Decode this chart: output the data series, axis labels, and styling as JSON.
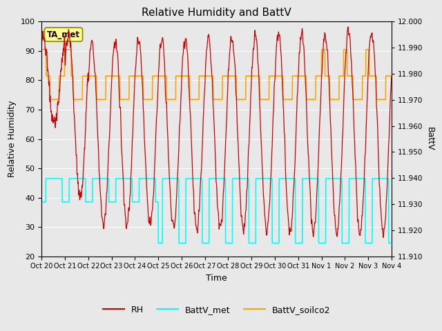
{
  "title": "Relative Humidity and BattV",
  "xlabel": "Time",
  "ylabel_left": "Relative Humidity",
  "ylabel_right": "BattV",
  "annotation": "TA_met",
  "annotation_facecolor": "#FFFF99",
  "annotation_edgecolor": "#888800",
  "fig_facecolor": "#E8E8E8",
  "plot_facecolor": "#E8E8E8",
  "rh_color": "#CC0000",
  "battv_met_color": "#00FFFF",
  "battv_soilco2_color": "#FFA500",
  "ylim_left": [
    20,
    100
  ],
  "ylim_right": [
    11.91,
    12.0
  ],
  "xtick_labels": [
    "Oct 20",
    "Oct 21",
    "Oct 22",
    "Oct 23",
    "Oct 24",
    "Oct 25",
    "Oct 26",
    "Oct 27",
    "Oct 28",
    "Oct 29",
    "Oct 30",
    "Oct 31",
    "Nov 1",
    "Nov 2",
    "Nov 3",
    "Nov 4"
  ],
  "ytick_right": [
    11.91,
    11.92,
    11.93,
    11.94,
    11.95,
    11.96,
    11.97,
    11.98,
    11.99,
    12.0
  ],
  "ytick_left": [
    20,
    30,
    40,
    50,
    60,
    70,
    80,
    90,
    100
  ],
  "grid_color": "#FFFFFF",
  "legend_labels": [
    "RH",
    "BattV_met",
    "BattV_soilco2"
  ]
}
